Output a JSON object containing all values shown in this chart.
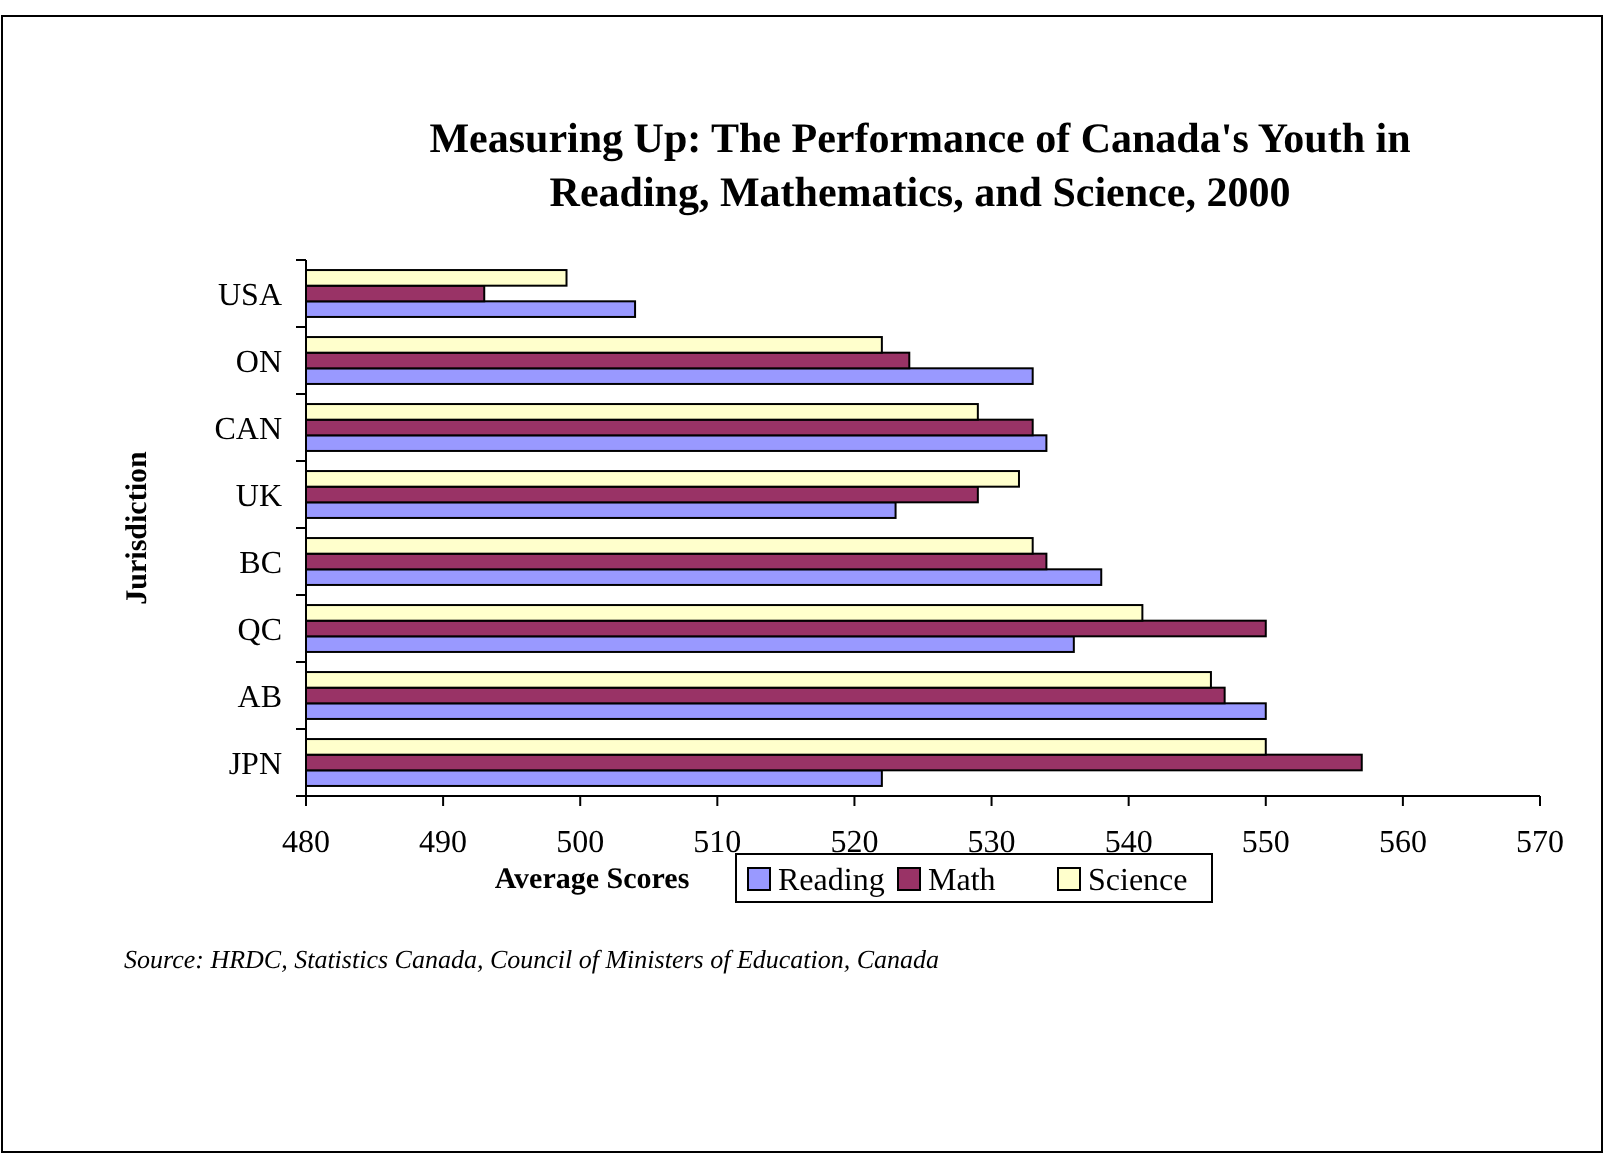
{
  "chart_data": {
    "type": "bar",
    "orientation": "horizontal",
    "title": "Measuring Up: The Performance of Canada's Youth in Reading, Mathematics, and Science, 2000",
    "xlabel": "Average Scores",
    "ylabel": "Jurisdiction",
    "categories": [
      "USA",
      "ON",
      "CAN",
      "UK",
      "BC",
      "QC",
      "AB",
      "JPN"
    ],
    "series": [
      {
        "name": "Reading",
        "color": "#9999ff",
        "values": [
          504,
          533,
          534,
          523,
          538,
          536,
          550,
          522
        ]
      },
      {
        "name": "Math",
        "color": "#993366",
        "values": [
          493,
          524,
          533,
          529,
          534,
          550,
          547,
          557
        ]
      },
      {
        "name": "Science",
        "color": "#ffffcc",
        "values": [
          499,
          522,
          529,
          532,
          533,
          541,
          546,
          550
        ]
      }
    ],
    "xlim": [
      480,
      570
    ],
    "xticks": [
      480,
      490,
      500,
      510,
      520,
      530,
      540,
      550,
      560,
      570
    ],
    "grid": false,
    "legend": "bottom",
    "annotations": [
      "Source: HRDC, Statistics Canada, Council of Ministers of Education, Canada"
    ]
  }
}
